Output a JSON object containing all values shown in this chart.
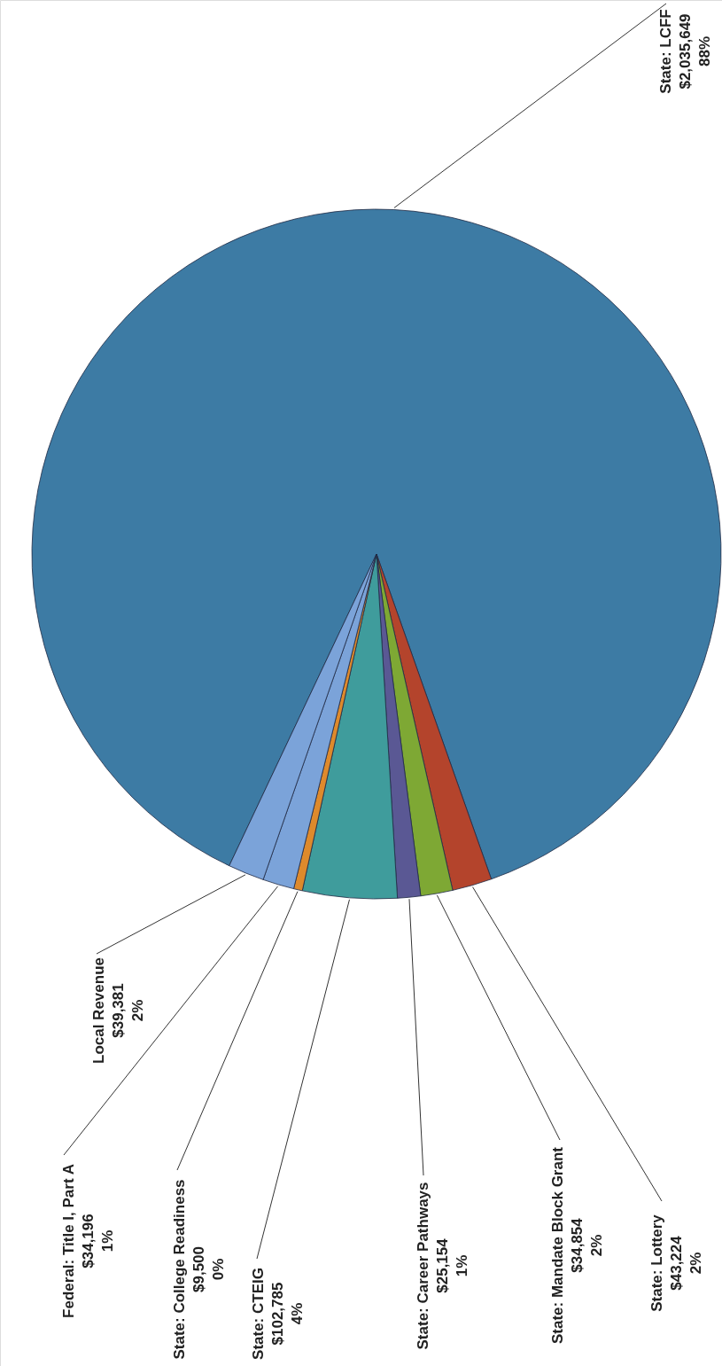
{
  "chart_data": {
    "type": "pie",
    "categories": [
      "State: LCFF",
      "State: Lottery",
      "State: Mandate Block Grant",
      "State: Career Pathways",
      "State: CTEIG",
      "State: College Readiness",
      "Federal: Title I, Part A",
      "Local Revenue"
    ],
    "values": [
      2035649,
      43224,
      34854,
      25154,
      102785,
      9500,
      34196,
      39381
    ],
    "colors": [
      "#3d7ba4",
      "#b4442c",
      "#7ea834",
      "#5a5894",
      "#3f9c9c",
      "#de8a2c",
      "#7ba3d9",
      "#7ba3d9"
    ],
    "value_labels": [
      "$2,035,649\n88%",
      "$43,224\n2%",
      "$34,854\n2%",
      "$25,154\n1%",
      "$102,785\n4%",
      "$9,500\n0%",
      "$34,196\n1%",
      "$39,381\n2%"
    ]
  }
}
